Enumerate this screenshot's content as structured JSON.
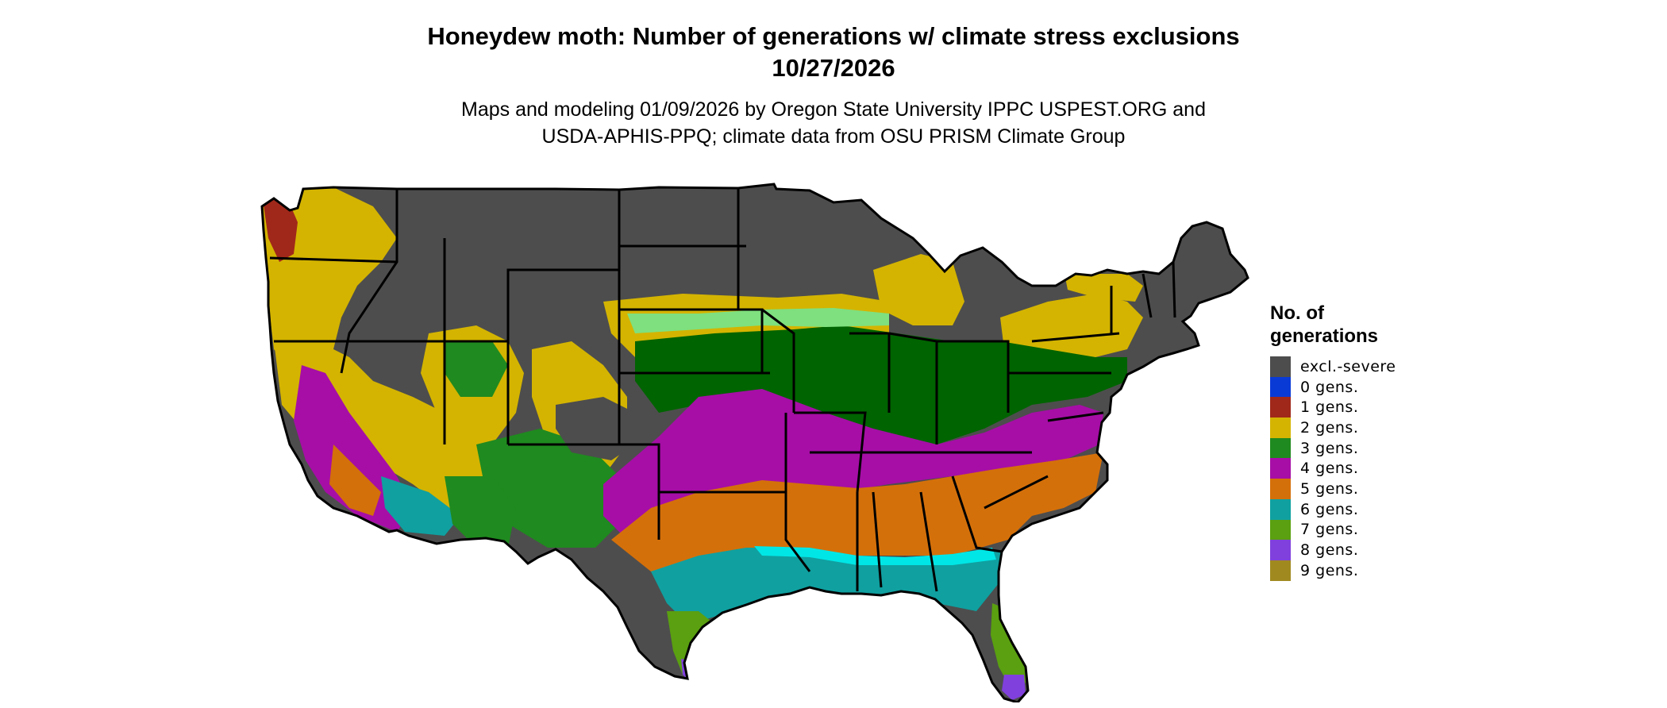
{
  "title": {
    "line1": "Honeydew moth: Number of generations w/ climate stress exclusions",
    "line2": "10/27/2026"
  },
  "subtitle": {
    "line1": "Maps and modeling 01/09/2026 by Oregon State University IPPC USPEST.ORG and",
    "line2": "USDA-APHIS-PPQ; climate data from OSU PRISM Climate Group"
  },
  "legend": {
    "title": "No. of generations",
    "items": [
      {
        "label": "excl.-severe",
        "color": "#4d4d4d"
      },
      {
        "label": "0 gens.",
        "color": "#0a3ad6"
      },
      {
        "label": "1 gens.",
        "color": "#a0281a"
      },
      {
        "label": "2 gens.",
        "color": "#d4b400"
      },
      {
        "label": "3 gens.",
        "color": "#1f8a1f"
      },
      {
        "label": "4 gens.",
        "color": "#a60ea6"
      },
      {
        "label": "5 gens.",
        "color": "#d4700a"
      },
      {
        "label": "6 gens.",
        "color": "#10a0a0"
      },
      {
        "label": "7 gens.",
        "color": "#5aa010"
      },
      {
        "label": "8 gens.",
        "color": "#8040dd"
      },
      {
        "label": "9 gens.",
        "color": "#a08a20"
      }
    ]
  },
  "map": {
    "region": "Contiguous United States",
    "colors": {
      "state_border": "#000000",
      "dark_green": "#006400",
      "light_green": "#7ee07e",
      "cyan": "#00e6e6",
      "magenta": "#e01ee0"
    }
  }
}
